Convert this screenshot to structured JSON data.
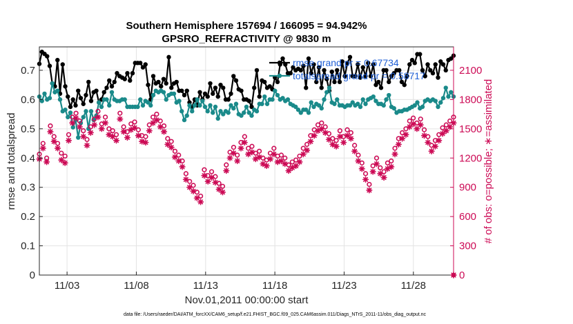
{
  "chart_data": {
    "type": "line",
    "title": "Southern Hemisphere 157694 / 166095 = 94.942%",
    "subtitle": "GPSRO_REFRACTIVITY @ 9830 m",
    "xlabel": "Nov.01,2011 00:00:00 start",
    "ylabel": "rmse and totalspread",
    "y2label": "# of obs: o=possible; ∗=assimilated",
    "footnote": "data file: /Users/raeder/DAI/ATM_forcXX/CAM6_setup/f.e21.FHIST_BGC.f09_025.CAM6assim.011/Diags_NTrS_2011-11/obs_diag_output.nc",
    "xlim": [
      1.0,
      30.9
    ],
    "ylim": [
      0,
      0.78
    ],
    "y2lim": [
      0,
      2340
    ],
    "xticks": [
      3,
      8,
      13,
      18,
      23,
      28
    ],
    "xtick_labels": [
      "11/03",
      "11/08",
      "11/13",
      "11/18",
      "11/23",
      "11/28"
    ],
    "yticks": [
      0,
      0.1,
      0.2,
      0.3,
      0.4,
      0.5,
      0.6,
      0.7
    ],
    "ytick_labels": [
      "0",
      "0.1",
      "0.2",
      "0.3",
      "0.4",
      "0.5",
      "0.6",
      "0.7"
    ],
    "y2ticks": [
      0,
      300,
      600,
      900,
      1200,
      1500,
      1800,
      2100
    ],
    "y2tick_labels": [
      "0",
      "300",
      "600",
      "900",
      "1200",
      "1500",
      "1800",
      "2100"
    ],
    "grid": true,
    "legend_placement": "top-right",
    "legend": [
      {
        "label": "rmse grand pr = 0.67734",
        "color": "#000000"
      },
      {
        "label": "totalspread grand pr = 0.58717",
        "color": "#1a8a8a"
      }
    ],
    "series": [
      {
        "name": "rmse",
        "axis": "left",
        "color": "#000000",
        "marker": "filled-circle",
        "values": [
          0.722,
          0.763,
          0.756,
          0.748,
          0.715,
          0.655,
          0.645,
          0.735,
          0.62,
          0.72,
          0.645,
          0.61,
          0.575,
          0.6,
          0.58,
          0.63,
          0.605,
          0.585,
          0.615,
          0.66,
          0.595,
          0.625,
          0.63,
          0.59,
          0.6,
          0.625,
          0.64,
          0.665,
          0.645,
          0.66,
          0.69,
          0.68,
          0.675,
          0.67,
          0.69,
          0.665,
          0.69,
          0.725,
          0.725,
          0.725,
          0.71,
          0.72,
          0.65,
          0.6,
          0.68,
          0.655,
          0.66,
          0.645,
          0.67,
          0.655,
          0.745,
          0.64,
          0.655,
          0.66,
          0.63,
          0.63,
          0.615,
          0.63,
          0.59,
          0.575,
          0.6,
          0.58,
          0.625,
          0.6,
          0.62,
          0.61,
          0.655,
          0.62,
          0.64,
          0.61,
          0.65,
          0.64,
          0.6,
          0.6,
          0.62,
          0.68,
          0.665,
          0.635,
          0.63,
          0.6,
          0.6,
          0.595,
          0.575,
          0.64,
          0.7,
          0.61,
          0.665,
          0.66,
          0.64,
          0.645,
          0.635,
          0.675,
          0.66,
          0.72,
          0.74,
          0.72,
          0.69,
          0.69,
          0.71,
          0.7,
          0.705,
          0.7,
          0.715,
          0.64,
          0.74,
          0.69,
          0.72,
          0.66,
          0.71,
          0.64,
          0.7,
          0.67,
          0.63,
          0.695,
          0.66,
          0.7,
          0.66,
          0.73,
          0.68,
          0.725,
          0.745,
          0.68,
          0.68,
          0.72,
          0.675,
          0.71,
          0.68,
          0.725,
          0.68,
          0.72,
          0.65,
          0.66,
          0.64,
          0.7,
          0.7,
          0.66,
          0.68,
          0.69,
          0.7,
          0.7,
          0.66,
          0.65,
          0.68,
          0.72,
          0.735,
          0.725,
          0.755,
          0.755,
          0.7,
          0.68,
          0.72,
          0.7,
          0.69,
          0.72,
          0.675,
          0.73,
          0.72,
          0.7,
          0.735,
          0.74,
          0.75
        ]
      },
      {
        "name": "totalspread",
        "axis": "left",
        "color": "#1a8a8a",
        "marker": "filled-circle",
        "values": [
          0.61,
          0.595,
          0.62,
          0.6,
          0.605,
          0.655,
          0.625,
          0.63,
          0.6,
          0.56,
          0.565,
          0.54,
          0.555,
          0.505,
          0.53,
          0.47,
          0.52,
          0.54,
          0.56,
          0.5,
          0.56,
          0.53,
          0.545,
          0.59,
          0.575,
          0.6,
          0.6,
          0.58,
          0.625,
          0.6,
          0.595,
          0.595,
          0.6,
          0.6,
          0.575,
          0.575,
          0.575,
          0.575,
          0.575,
          0.6,
          0.58,
          0.595,
          0.59,
          0.58,
          0.615,
          0.63,
          0.625,
          0.63,
          0.625,
          0.6,
          0.615,
          0.62,
          0.62,
          0.59,
          0.595,
          0.56,
          0.53,
          0.545,
          0.58,
          0.56,
          0.58,
          0.6,
          0.58,
          0.595,
          0.575,
          0.56,
          0.58,
          0.555,
          0.575,
          0.535,
          0.56,
          0.55,
          0.56,
          0.555,
          0.58,
          0.57,
          0.585,
          0.55,
          0.545,
          0.555,
          0.575,
          0.555,
          0.545,
          0.565,
          0.56,
          0.585,
          0.585,
          0.61,
          0.585,
          0.6,
          0.6,
          0.63,
          0.615,
          0.6,
          0.605,
          0.595,
          0.6,
          0.585,
          0.58,
          0.575,
          0.565,
          0.555,
          0.565,
          0.565,
          0.555,
          0.59,
          0.575,
          0.585,
          0.58,
          0.57,
          0.6,
          0.625,
          0.64,
          0.59,
          0.585,
          0.6,
          0.58,
          0.58,
          0.575,
          0.58,
          0.58,
          0.59,
          0.58,
          0.585,
          0.575,
          0.6,
          0.585,
          0.6,
          0.605,
          0.61,
          0.595,
          0.585,
          0.585,
          0.58,
          0.6,
          0.615,
          0.575,
          0.57,
          0.555,
          0.56,
          0.56,
          0.565,
          0.565,
          0.57,
          0.575,
          0.58,
          0.59,
          0.57,
          0.575,
          0.595,
          0.6,
          0.595,
          0.6,
          0.595,
          0.575,
          0.59,
          0.605,
          0.64,
          0.61,
          0.625,
          0.61
        ]
      },
      {
        "name": "possible",
        "axis": "right",
        "color": "#cc0a55",
        "marker": "open-circle",
        "stride": 2,
        "values": [
          1240,
          1350,
          1200,
          1530,
          1420,
          1350,
          1250,
          1220,
          1440,
          1620,
          1660,
          1580,
          1480,
          1390,
          1520,
          1600,
          1680,
          1550,
          1620,
          1500,
          1480,
          1440,
          1660,
          1520,
          1470,
          1550,
          1570,
          1490,
          1430,
          1420,
          1540,
          1620,
          1650,
          1580,
          1530,
          1400,
          1370,
          1270,
          1230,
          1170,
          1040,
          960,
          920,
          850,
          810,
          1080,
          1020,
          1060,
          1010,
          940,
          910,
          1130,
          1260,
          1310,
          1230,
          1360,
          1420,
          1300,
          1320,
          1250,
          1270,
          1200,
          1180,
          1250,
          1300,
          1220,
          1230,
          1200,
          1130,
          1160,
          1180,
          1220,
          1300,
          1340,
          1430,
          1490,
          1540,
          1560,
          1520,
          1450,
          1400,
          1380,
          1480,
          1420,
          1490,
          1460,
          1330,
          1230,
          1150,
          1040,
          930,
          1120,
          1200,
          1100,
          1060,
          1150,
          1170,
          1300,
          1400,
          1460,
          1500,
          1580,
          1610,
          1560,
          1600,
          1490,
          1420,
          1330,
          1380,
          1440,
          1510,
          1540,
          1580,
          1620
        ]
      },
      {
        "name": "assimilated",
        "axis": "right",
        "color": "#cc0a55",
        "marker": "asterisk",
        "stride": 2,
        "values": [
          1190,
          1300,
          1160,
          1470,
          1370,
          1300,
          1180,
          1150,
          1380,
          1560,
          1610,
          1520,
          1420,
          1330,
          1460,
          1540,
          1620,
          1500,
          1560,
          1440,
          1420,
          1380,
          1600,
          1470,
          1410,
          1490,
          1510,
          1430,
          1370,
          1360,
          1480,
          1560,
          1590,
          1520,
          1470,
          1340,
          1310,
          1210,
          1170,
          1110,
          980,
          900,
          860,
          790,
          750,
          1020,
          960,
          1000,
          950,
          880,
          850,
          1070,
          1200,
          1250,
          1170,
          1300,
          1360,
          1240,
          1260,
          1190,
          1210,
          1140,
          1120,
          1190,
          1240,
          1160,
          1170,
          1140,
          1070,
          1100,
          1120,
          1160,
          1240,
          1280,
          1370,
          1430,
          1480,
          1500,
          1460,
          1390,
          1340,
          1320,
          1420,
          1360,
          1430,
          1400,
          1270,
          1170,
          1090,
          980,
          870,
          1060,
          1140,
          1040,
          1000,
          1090,
          1110,
          1240,
          1340,
          1400,
          1440,
          1520,
          1550,
          1500,
          1540,
          1430,
          1360,
          1270,
          1320,
          1380,
          1450,
          1480,
          1520,
          1560
        ]
      }
    ]
  }
}
